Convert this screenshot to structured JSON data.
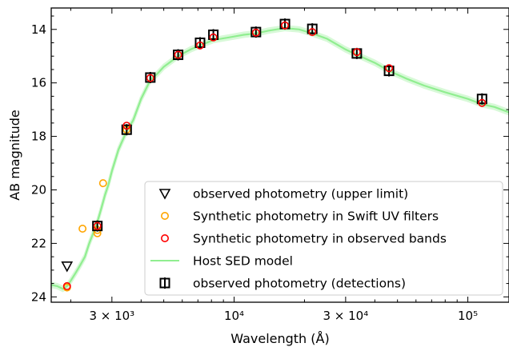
{
  "chart_data": {
    "type": "scatter",
    "x_scale": "log",
    "y_inverted": true,
    "xlabel": "Wavelength (Å)",
    "ylabel": "AB magnitude",
    "xlim": [
      1650,
      150000
    ],
    "ylim": [
      24.2,
      13.2
    ],
    "x_ticks": [
      {
        "value": 3000,
        "label": "3 × 10³"
      },
      {
        "value": 10000,
        "label": "10⁴"
      },
      {
        "value": 30000,
        "label": "3 × 10⁴"
      },
      {
        "value": 100000,
        "label": "10⁵"
      }
    ],
    "y_ticks": [
      14,
      16,
      18,
      20,
      22,
      24
    ],
    "grid": false,
    "legend_position": "lower-right",
    "colors": {
      "upper_limit": "#000000",
      "swift_uv": "#ffa500",
      "observed_bands": "#ff0000",
      "sed_model": "#90ee90",
      "detections": "#000000"
    },
    "series": [
      {
        "name": "observed photometry (upper limit)",
        "marker": "triangle-down-open",
        "points": [
          [
            1928,
            22.85
          ]
        ]
      },
      {
        "name": "Synthetic photometry in Swift UV filters",
        "marker": "circle-open",
        "points": [
          [
            1928,
            23.65
          ],
          [
            2246,
            21.45
          ],
          [
            2600,
            21.62
          ],
          [
            2600,
            21.5
          ],
          [
            2750,
            19.75
          ],
          [
            3470,
            17.75
          ]
        ]
      },
      {
        "name": "Synthetic photometry in observed bands",
        "marker": "circle-open",
        "points": [
          [
            1928,
            23.6
          ],
          [
            2600,
            21.35
          ],
          [
            3470,
            17.6
          ],
          [
            4380,
            15.82
          ],
          [
            5760,
            14.95
          ],
          [
            7150,
            14.6
          ],
          [
            8150,
            14.3
          ],
          [
            12400,
            14.12
          ],
          [
            16500,
            13.85
          ],
          [
            21600,
            14.1
          ],
          [
            33500,
            14.85
          ],
          [
            46000,
            15.45
          ],
          [
            115000,
            16.75
          ]
        ]
      },
      {
        "name": "Host SED model",
        "marker": "line",
        "points": [
          [
            1650,
            23.55
          ],
          [
            1750,
            23.6
          ],
          [
            1850,
            23.7
          ],
          [
            1928,
            23.6
          ],
          [
            2000,
            23.4
          ],
          [
            2100,
            23.1
          ],
          [
            2200,
            22.8
          ],
          [
            2300,
            22.5
          ],
          [
            2400,
            22.0
          ],
          [
            2500,
            21.6
          ],
          [
            2600,
            21.2
          ],
          [
            2700,
            20.7
          ],
          [
            2800,
            20.2
          ],
          [
            2900,
            19.8
          ],
          [
            3000,
            19.3
          ],
          [
            3200,
            18.5
          ],
          [
            3470,
            17.8
          ],
          [
            3700,
            17.4
          ],
          [
            4000,
            16.6
          ],
          [
            4380,
            15.9
          ],
          [
            4700,
            15.65
          ],
          [
            5000,
            15.4
          ],
          [
            5760,
            15.0
          ],
          [
            6500,
            14.75
          ],
          [
            7150,
            14.6
          ],
          [
            8150,
            14.4
          ],
          [
            9500,
            14.3
          ],
          [
            11000,
            14.2
          ],
          [
            12400,
            14.15
          ],
          [
            14000,
            14.05
          ],
          [
            16500,
            13.95
          ],
          [
            19000,
            14.0
          ],
          [
            21600,
            14.15
          ],
          [
            25000,
            14.35
          ],
          [
            30000,
            14.75
          ],
          [
            33500,
            14.95
          ],
          [
            40000,
            15.25
          ],
          [
            46000,
            15.55
          ],
          [
            55000,
            15.85
          ],
          [
            65000,
            16.1
          ],
          [
            80000,
            16.35
          ],
          [
            100000,
            16.6
          ],
          [
            115000,
            16.8
          ],
          [
            130000,
            16.9
          ],
          [
            150000,
            17.1
          ]
        ]
      },
      {
        "name": "observed photometry (detections)",
        "marker": "square-open-errorbar",
        "points": [
          [
            2600,
            21.35
          ],
          [
            3470,
            17.75
          ],
          [
            4380,
            15.8
          ],
          [
            5760,
            14.95
          ],
          [
            7150,
            14.5
          ],
          [
            8150,
            14.2
          ],
          [
            12400,
            14.1
          ],
          [
            16500,
            13.8
          ],
          [
            21600,
            13.98
          ],
          [
            33500,
            14.9
          ],
          [
            46000,
            15.55
          ],
          [
            115000,
            16.6
          ]
        ]
      }
    ]
  }
}
